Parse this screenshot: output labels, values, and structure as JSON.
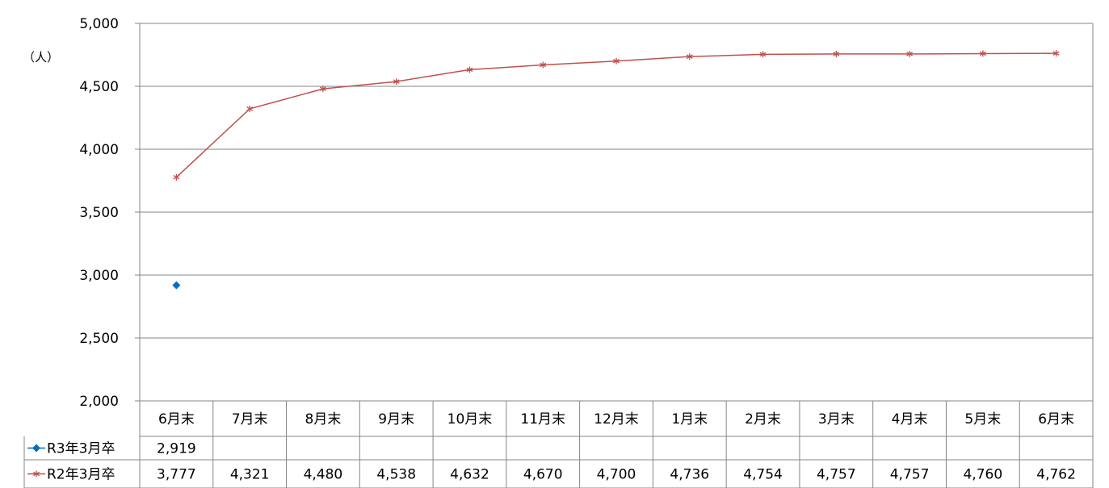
{
  "chart_data": {
    "type": "line",
    "unit_label": "（人）",
    "ylim": [
      2000,
      5000
    ],
    "ytick_labels": [
      "2,000",
      "2,500",
      "3,000",
      "3,500",
      "4,000",
      "4,500",
      "5,000"
    ],
    "yticks": [
      2000,
      2500,
      3000,
      3500,
      4000,
      4500,
      5000
    ],
    "categories": [
      "6月末",
      "7月末",
      "8月末",
      "9月末",
      "10月末",
      "11月末",
      "12月末",
      "1月末",
      "2月末",
      "3月末",
      "4月末",
      "5月末",
      "6月末"
    ],
    "grid": true,
    "legend": "data-table",
    "series": [
      {
        "name": "R3年3月卒",
        "color": "#0070c0",
        "marker": "diamond",
        "values": [
          2919,
          null,
          null,
          null,
          null,
          null,
          null,
          null,
          null,
          null,
          null,
          null,
          null
        ],
        "value_labels": [
          "2,919",
          "",
          "",
          "",
          "",
          "",
          "",
          "",
          "",
          "",
          "",
          "",
          ""
        ]
      },
      {
        "name": "R2年3月卒",
        "color": "#c0504d",
        "marker": "star",
        "values": [
          3777,
          4321,
          4480,
          4538,
          4632,
          4670,
          4700,
          4736,
          4754,
          4757,
          4757,
          4760,
          4762
        ],
        "value_labels": [
          "3,777",
          "4,321",
          "4,480",
          "4,538",
          "4,632",
          "4,670",
          "4,700",
          "4,736",
          "4,754",
          "4,757",
          "4,757",
          "4,760",
          "4,762"
        ]
      }
    ]
  }
}
